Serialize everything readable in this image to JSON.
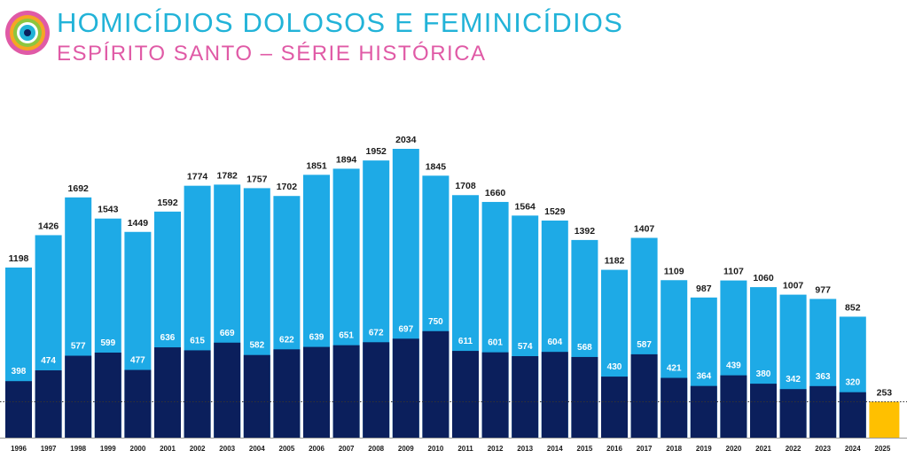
{
  "header": {
    "title": "HOMICÍDIOS DOLOSOS E FEMINICÍDIOS",
    "subtitle": "ESPÍRITO SANTO – SÉRIE HISTÓRICA",
    "title_color": "#22b3d8",
    "subtitle_color": "#e05aa6"
  },
  "logo": {
    "icon": "concentric-eye-logo-icon"
  },
  "chart_data": {
    "type": "bar",
    "title": "HOMICÍDIOS DOLOSOS E FEMINICÍDIOS",
    "subtitle": "ESPÍRITO SANTO – SÉRIE HISTÓRICA",
    "categories": [
      "1996",
      "1997",
      "1998",
      "1999",
      "2000",
      "2001",
      "2002",
      "2003",
      "2004",
      "2005",
      "2006",
      "2007",
      "2008",
      "2009",
      "2010",
      "2011",
      "2012",
      "2013",
      "2014",
      "2015",
      "2016",
      "2017",
      "2018",
      "2019",
      "2020",
      "2021",
      "2022",
      "2023",
      "2024",
      "2025"
    ],
    "series": [
      {
        "color": "#1eaae6",
        "values": [
          1198,
          1426,
          1692,
          1543,
          1449,
          1592,
          1774,
          1782,
          1757,
          1702,
          1851,
          1894,
          1952,
          2034,
          1845,
          1708,
          1660,
          1564,
          1529,
          1392,
          1182,
          1407,
          1109,
          987,
          1107,
          1060,
          1007,
          977,
          852,
          null
        ]
      },
      {
        "color": "#0b1f5c",
        "values": [
          398,
          474,
          577,
          599,
          477,
          636,
          615,
          669,
          582,
          622,
          639,
          651,
          672,
          697,
          750,
          611,
          601,
          574,
          604,
          568,
          430,
          587,
          421,
          364,
          439,
          380,
          342,
          363,
          320,
          null
        ]
      },
      {
        "color": "#ffc000",
        "values": [
          null,
          null,
          null,
          null,
          null,
          null,
          null,
          null,
          null,
          null,
          null,
          null,
          null,
          null,
          null,
          null,
          null,
          null,
          null,
          null,
          null,
          null,
          null,
          null,
          null,
          null,
          null,
          null,
          null,
          253
        ]
      }
    ],
    "ylim": [
      0,
      2034
    ],
    "reference_line": {
      "value": 253,
      "style": "dotted"
    },
    "xlabel": "",
    "ylabel": "",
    "grid": false,
    "legend": "none"
  }
}
